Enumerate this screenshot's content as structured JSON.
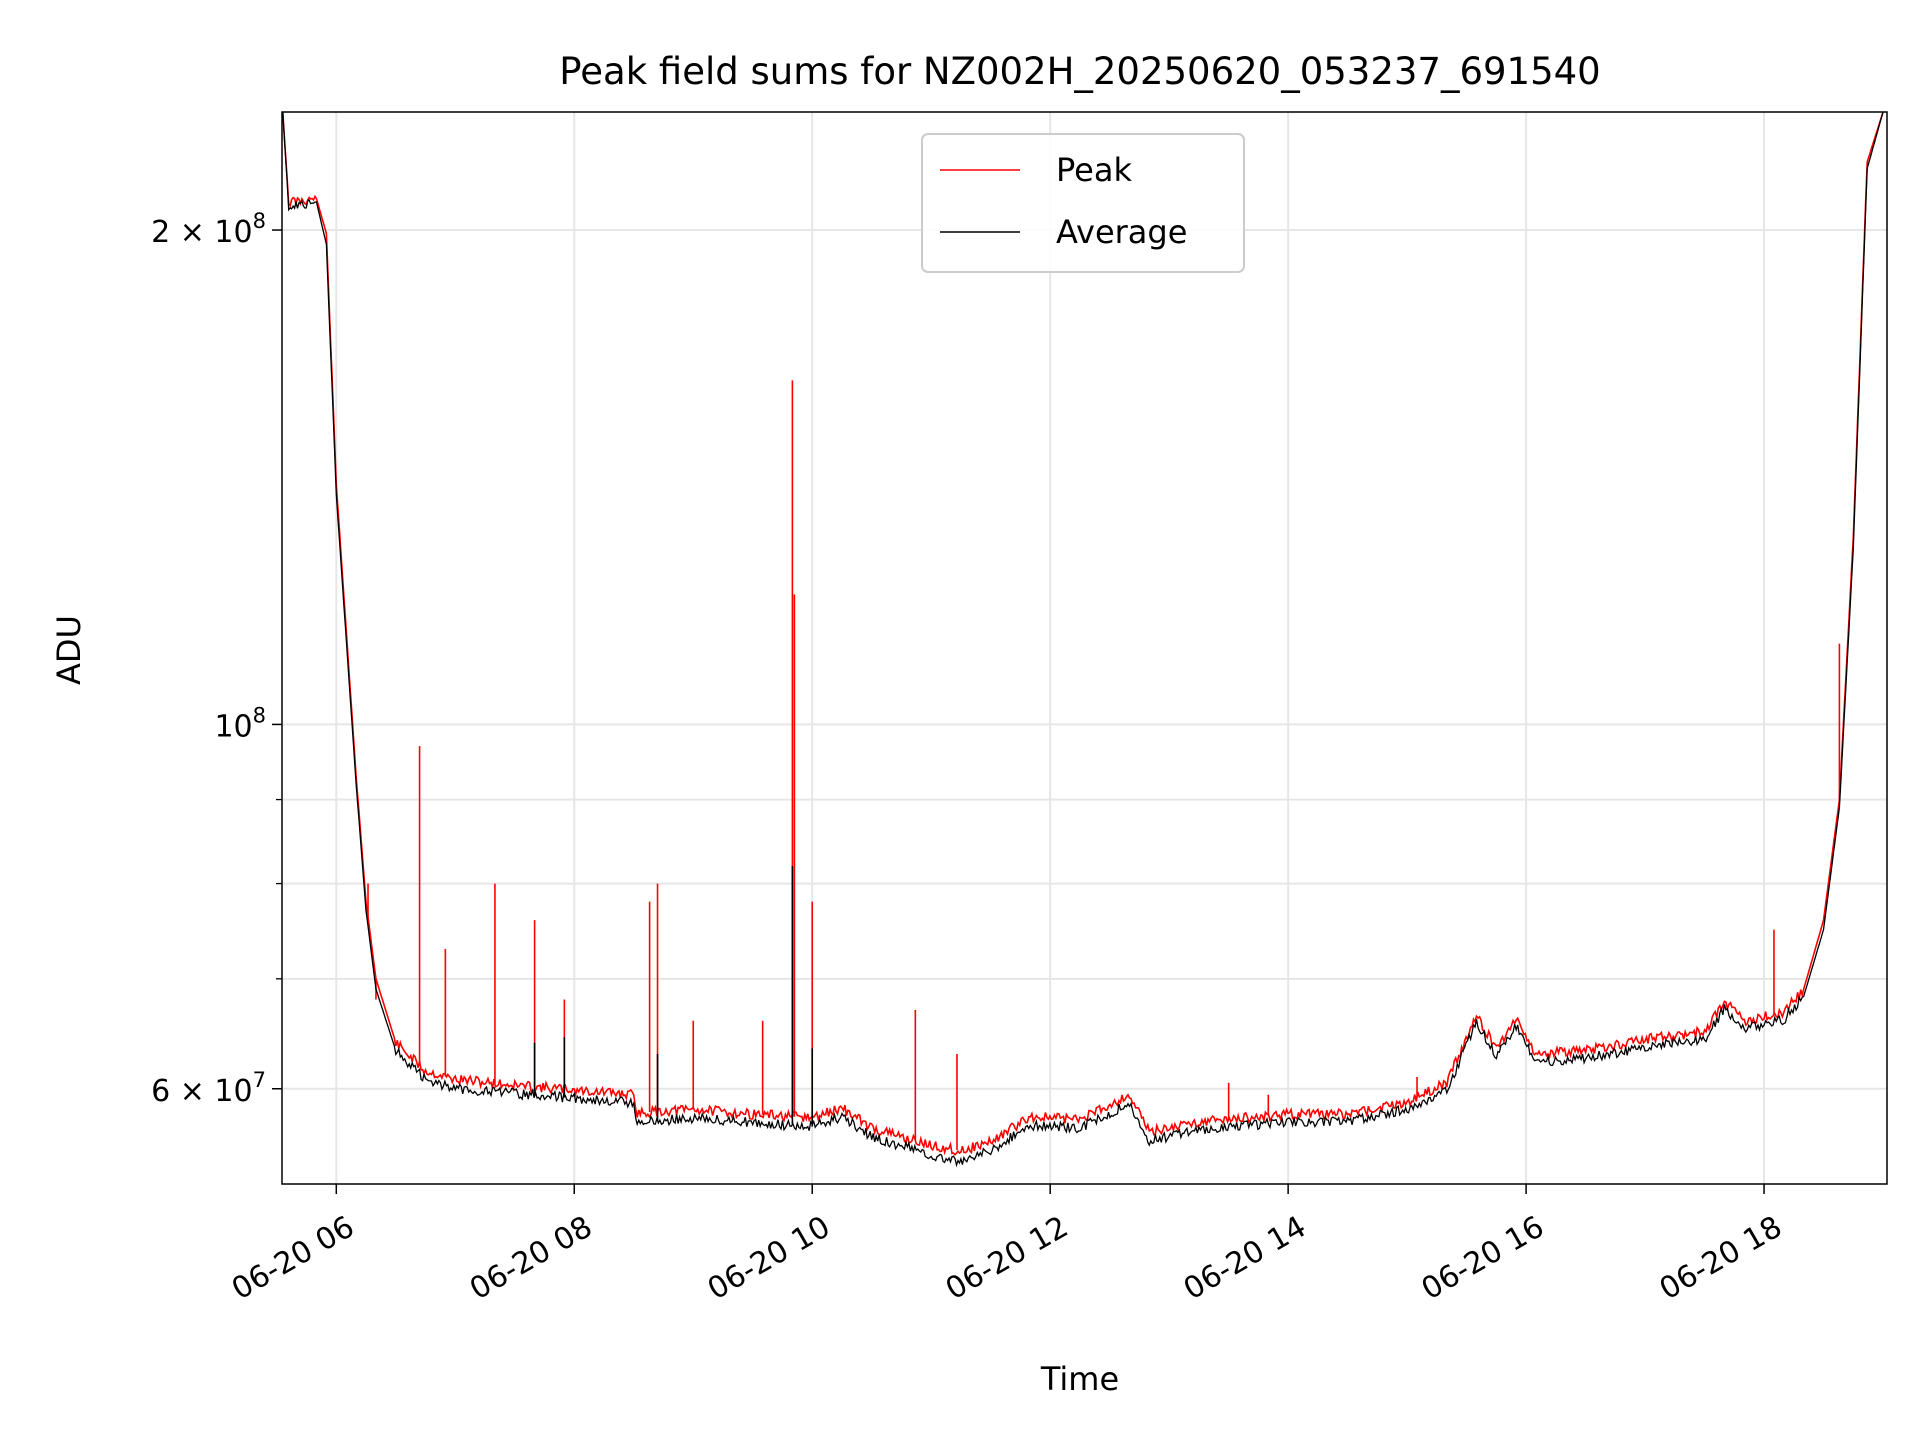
{
  "chart_data": {
    "type": "line",
    "title": "Peak field sums for NZ002H_20250620_053237_691540",
    "xlabel": "Time",
    "ylabel": "ADU",
    "y_scale": "log",
    "x_range": [
      "2025-06-20 05:32:37",
      "2025-06-20 19:02:00"
    ],
    "ylim": [
      52500000,
      236000000
    ],
    "grid": true,
    "legend_position": "top-center",
    "x_ticks": [
      {
        "time": "2025-06-20 06:00",
        "label": "06-20 06"
      },
      {
        "time": "2025-06-20 08:00",
        "label": "06-20 08"
      },
      {
        "time": "2025-06-20 10:00",
        "label": "06-20 10"
      },
      {
        "time": "2025-06-20 12:00",
        "label": "06-20 12"
      },
      {
        "time": "2025-06-20 14:00",
        "label": "06-20 14"
      },
      {
        "time": "2025-06-20 16:00",
        "label": "06-20 16"
      },
      {
        "time": "2025-06-20 18:00",
        "label": "06-20 18"
      }
    ],
    "y_major_ticks": [
      {
        "value": 60000000,
        "mantissa": "6 × 10",
        "exp": "7"
      },
      {
        "value": 100000000,
        "mantissa": "10",
        "exp": "8"
      },
      {
        "value": 200000000,
        "mantissa": "2 × 10",
        "exp": "8"
      }
    ],
    "y_minor_ticks": [
      70000000,
      80000000,
      90000000
    ],
    "series": [
      {
        "name": "Peak",
        "color": "#ff0000",
        "points": [
          [
            "2025-06-20 05:33",
            236000000
          ],
          [
            "2025-06-20 05:36",
            208000000
          ],
          [
            "2025-06-20 05:50",
            209000000
          ],
          [
            "2025-06-20 05:55",
            199000000
          ],
          [
            "2025-06-20 06:00",
            140000000
          ],
          [
            "2025-06-20 06:10",
            93000000
          ],
          [
            "2025-06-20 06:15",
            78000000
          ],
          [
            "2025-06-20 06:20",
            70000000
          ],
          [
            "2025-06-20 06:30",
            64000000
          ],
          [
            "2025-06-20 06:45",
            61500000
          ],
          [
            "2025-06-20 07:00",
            60800000
          ],
          [
            "2025-06-20 07:30",
            60300000
          ],
          [
            "2025-06-20 08:00",
            59900000
          ],
          [
            "2025-06-20 08:30",
            59500000
          ],
          [
            "2025-06-20 08:31",
            58000000
          ],
          [
            "2025-06-20 09:00",
            58300000
          ],
          [
            "2025-06-20 09:30",
            57900000
          ],
          [
            "2025-06-20 10:00",
            57600000
          ],
          [
            "2025-06-20 10:15",
            58400000
          ],
          [
            "2025-06-20 10:30",
            56800000
          ],
          [
            "2025-06-20 11:00",
            55400000
          ],
          [
            "2025-06-20 11:15",
            55000000
          ],
          [
            "2025-06-20 11:30",
            55700000
          ],
          [
            "2025-06-20 11:50",
            57700000
          ],
          [
            "2025-06-20 12:15",
            57500000
          ],
          [
            "2025-06-20 12:40",
            59500000
          ],
          [
            "2025-06-20 12:50",
            56500000
          ],
          [
            "2025-06-20 13:15",
            57300000
          ],
          [
            "2025-06-20 14:00",
            57900000
          ],
          [
            "2025-06-20 14:30",
            57900000
          ],
          [
            "2025-06-20 15:00",
            58900000
          ],
          [
            "2025-06-20 15:20",
            60500000
          ],
          [
            "2025-06-20 15:35",
            66500000
          ],
          [
            "2025-06-20 15:45",
            63500000
          ],
          [
            "2025-06-20 15:55",
            66300000
          ],
          [
            "2025-06-20 16:05",
            63000000
          ],
          [
            "2025-06-20 16:30",
            63300000
          ],
          [
            "2025-06-20 17:00",
            64300000
          ],
          [
            "2025-06-20 17:30",
            65000000
          ],
          [
            "2025-06-20 17:40",
            67800000
          ],
          [
            "2025-06-20 17:50",
            66000000
          ],
          [
            "2025-06-20 18:10",
            66800000
          ],
          [
            "2025-06-20 18:20",
            69000000
          ],
          [
            "2025-06-20 18:30",
            76000000
          ],
          [
            "2025-06-20 18:38",
            90000000
          ],
          [
            "2025-06-20 18:45",
            130000000
          ],
          [
            "2025-06-20 18:52",
            220000000
          ],
          [
            "2025-06-20 19:00",
            236000000
          ]
        ],
        "spikes": [
          [
            "2025-06-20 05:55",
            199000000
          ],
          [
            "2025-06-20 06:16",
            80000000
          ],
          [
            "2025-06-20 06:20",
            68000000
          ],
          [
            "2025-06-20 06:42",
            97000000
          ],
          [
            "2025-06-20 06:55",
            73000000
          ],
          [
            "2025-06-20 07:20",
            80000000
          ],
          [
            "2025-06-20 07:40",
            76000000
          ],
          [
            "2025-06-20 07:55",
            68000000
          ],
          [
            "2025-06-20 08:38",
            78000000
          ],
          [
            "2025-06-20 08:42",
            80000000
          ],
          [
            "2025-06-20 09:00",
            66000000
          ],
          [
            "2025-06-20 09:35",
            66000000
          ],
          [
            "2025-06-20 09:50",
            162000000
          ],
          [
            "2025-06-20 09:51",
            120000000
          ],
          [
            "2025-06-20 10:00",
            78000000
          ],
          [
            "2025-06-20 10:52",
            67000000
          ],
          [
            "2025-06-20 11:13",
            63000000
          ],
          [
            "2025-06-20 13:30",
            60500000
          ],
          [
            "2025-06-20 13:50",
            59500000
          ],
          [
            "2025-06-20 15:05",
            61000000
          ],
          [
            "2025-06-20 18:05",
            75000000
          ],
          [
            "2025-06-20 18:38",
            112000000
          ]
        ]
      },
      {
        "name": "Average",
        "color": "#000000",
        "points": [
          [
            "2025-06-20 05:33",
            236000000
          ],
          [
            "2025-06-20 05:36",
            207000000
          ],
          [
            "2025-06-20 05:50",
            208000000
          ],
          [
            "2025-06-20 05:55",
            196000000
          ],
          [
            "2025-06-20 06:00",
            138000000
          ],
          [
            "2025-06-20 06:10",
            92000000
          ],
          [
            "2025-06-20 06:15",
            77000000
          ],
          [
            "2025-06-20 06:20",
            69000000
          ],
          [
            "2025-06-20 06:30",
            63300000
          ],
          [
            "2025-06-20 06:45",
            60800000
          ],
          [
            "2025-06-20 07:00",
            60000000
          ],
          [
            "2025-06-20 07:30",
            59600000
          ],
          [
            "2025-06-20 08:00",
            59200000
          ],
          [
            "2025-06-20 08:30",
            58800000
          ],
          [
            "2025-06-20 08:31",
            57200000
          ],
          [
            "2025-06-20 09:00",
            57600000
          ],
          [
            "2025-06-20 09:30",
            57200000
          ],
          [
            "2025-06-20 10:00",
            56900000
          ],
          [
            "2025-06-20 10:15",
            57700000
          ],
          [
            "2025-06-20 10:30",
            56100000
          ],
          [
            "2025-06-20 11:00",
            54700000
          ],
          [
            "2025-06-20 11:15",
            54200000
          ],
          [
            "2025-06-20 11:30",
            55000000
          ],
          [
            "2025-06-20 11:50",
            57000000
          ],
          [
            "2025-06-20 12:15",
            56800000
          ],
          [
            "2025-06-20 12:40",
            58800000
          ],
          [
            "2025-06-20 12:50",
            55800000
          ],
          [
            "2025-06-20 13:15",
            56600000
          ],
          [
            "2025-06-20 14:00",
            57300000
          ],
          [
            "2025-06-20 14:30",
            57300000
          ],
          [
            "2025-06-20 15:00",
            58300000
          ],
          [
            "2025-06-20 15:20",
            59900000
          ],
          [
            "2025-06-20 15:35",
            65800000
          ],
          [
            "2025-06-20 15:45",
            62800000
          ],
          [
            "2025-06-20 15:55",
            65600000
          ],
          [
            "2025-06-20 16:05",
            62300000
          ],
          [
            "2025-06-20 16:30",
            62600000
          ],
          [
            "2025-06-20 17:00",
            63600000
          ],
          [
            "2025-06-20 17:30",
            64300000
          ],
          [
            "2025-06-20 17:40",
            67100000
          ],
          [
            "2025-06-20 17:50",
            65300000
          ],
          [
            "2025-06-20 18:10",
            66100000
          ],
          [
            "2025-06-20 18:20",
            68300000
          ],
          [
            "2025-06-20 18:30",
            75000000
          ],
          [
            "2025-06-20 18:38",
            89000000
          ],
          [
            "2025-06-20 18:45",
            128000000
          ],
          [
            "2025-06-20 18:52",
            218000000
          ],
          [
            "2025-06-20 19:00",
            236000000
          ]
        ],
        "spikes": [
          [
            "2025-06-20 09:50",
            82000000
          ],
          [
            "2025-06-20 07:40",
            64000000
          ],
          [
            "2025-06-20 07:55",
            64500000
          ],
          [
            "2025-06-20 08:42",
            63000000
          ],
          [
            "2025-06-20 10:00",
            63500000
          ]
        ]
      }
    ]
  }
}
